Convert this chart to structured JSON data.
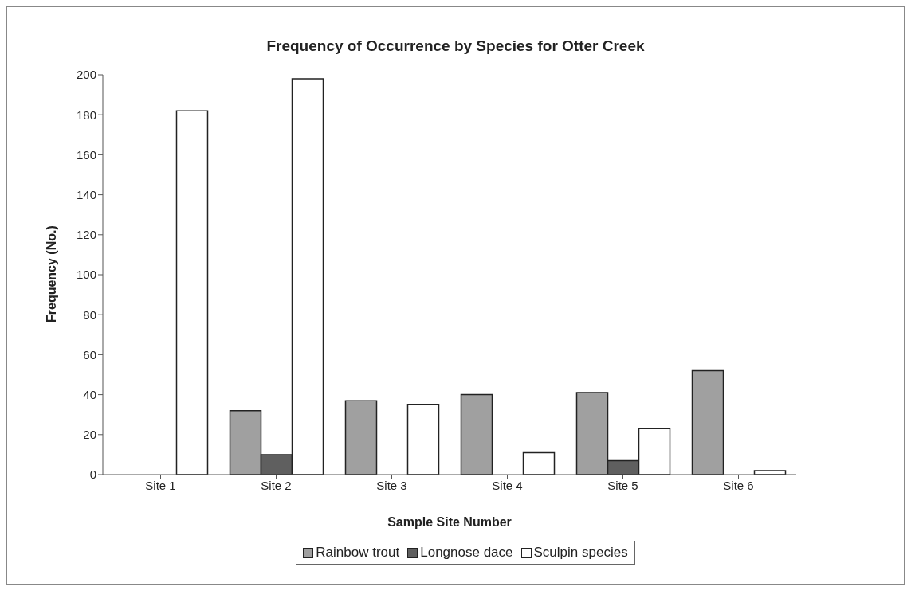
{
  "chart_data": {
    "type": "bar",
    "title": "Frequency of Occurrence by Species for Otter Creek",
    "xlabel": "Sample Site Number",
    "ylabel": "Frequency (No.)",
    "categories": [
      "Site 1",
      "Site 2",
      "Site 3",
      "Site 4",
      "Site 5",
      "Site 6"
    ],
    "series": [
      {
        "name": "Rainbow trout",
        "color": "#a0a0a0",
        "values": [
          0,
          32,
          37,
          40,
          41,
          52
        ]
      },
      {
        "name": "Longnose dace",
        "color": "#5f5f5f",
        "values": [
          0,
          10,
          0,
          0,
          7,
          0
        ]
      },
      {
        "name": "Sculpin species",
        "color": "#ffffff",
        "values": [
          182,
          198,
          35,
          11,
          23,
          2
        ]
      }
    ],
    "ylim": [
      0,
      200
    ],
    "yticks": [
      0,
      20,
      40,
      60,
      80,
      100,
      120,
      140,
      160,
      180,
      200
    ],
    "grid": false,
    "legend": "bottom"
  }
}
